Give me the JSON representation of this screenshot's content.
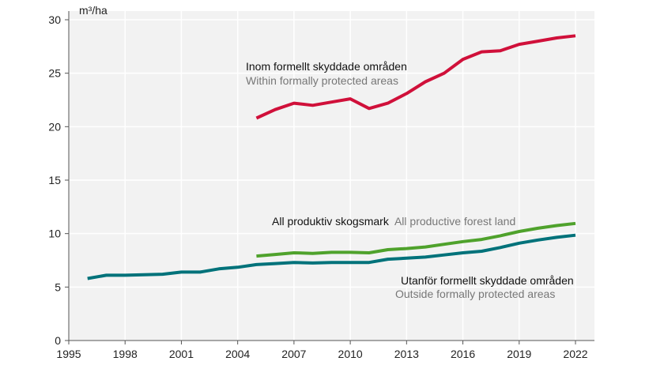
{
  "chart_data": {
    "type": "line",
    "ylabel": "m³/ha",
    "xlabel": "",
    "xlim": [
      1995,
      2023
    ],
    "ylim": [
      0,
      30
    ],
    "xticks": [
      1995,
      1998,
      2001,
      2004,
      2007,
      2010,
      2013,
      2016,
      2019,
      2022
    ],
    "yticks": [
      0,
      5,
      10,
      15,
      20,
      25,
      30
    ],
    "grid": true,
    "colors": {
      "protected": "#d0103a",
      "all": "#4fa22c",
      "outside": "#00727a"
    },
    "series": [
      {
        "key": "protected",
        "name_sv": "Inom formellt skyddade områden",
        "name_en": "Within formally protected areas",
        "x": [
          2005,
          2006,
          2007,
          2008,
          2009,
          2010,
          2011,
          2012,
          2013,
          2014,
          2015,
          2016,
          2017,
          2018,
          2019,
          2020,
          2021,
          2022
        ],
        "values": [
          20.8,
          21.6,
          22.2,
          22.0,
          22.3,
          22.6,
          21.7,
          22.2,
          23.1,
          24.2,
          25.0,
          26.3,
          27.0,
          27.1,
          27.7,
          28.0,
          28.3,
          28.5
        ]
      },
      {
        "key": "all",
        "name_sv": "All produktiv skogsmark",
        "name_en": "All productive forest land",
        "x": [
          2005,
          2006,
          2007,
          2008,
          2009,
          2010,
          2011,
          2012,
          2013,
          2014,
          2015,
          2016,
          2017,
          2018,
          2019,
          2020,
          2021,
          2022
        ],
        "values": [
          7.9,
          8.05,
          8.2,
          8.15,
          8.25,
          8.25,
          8.2,
          8.5,
          8.6,
          8.75,
          9.0,
          9.25,
          9.45,
          9.8,
          10.2,
          10.5,
          10.75,
          10.95
        ]
      },
      {
        "key": "outside",
        "name_sv": "Utanför formellt skyddade områden",
        "name_en": "Outside formally protected areas",
        "x": [
          1996,
          1997,
          1998,
          1999,
          2000,
          2001,
          2002,
          2003,
          2004,
          2005,
          2006,
          2007,
          2008,
          2009,
          2010,
          2011,
          2012,
          2013,
          2014,
          2015,
          2016,
          2017,
          2018,
          2019,
          2020,
          2021,
          2022
        ],
        "values": [
          5.8,
          6.1,
          6.1,
          6.15,
          6.2,
          6.4,
          6.4,
          6.7,
          6.85,
          7.1,
          7.2,
          7.3,
          7.25,
          7.3,
          7.3,
          7.3,
          7.6,
          7.7,
          7.8,
          8.0,
          8.2,
          8.35,
          8.7,
          9.1,
          9.4,
          9.65,
          9.85
        ]
      }
    ]
  }
}
